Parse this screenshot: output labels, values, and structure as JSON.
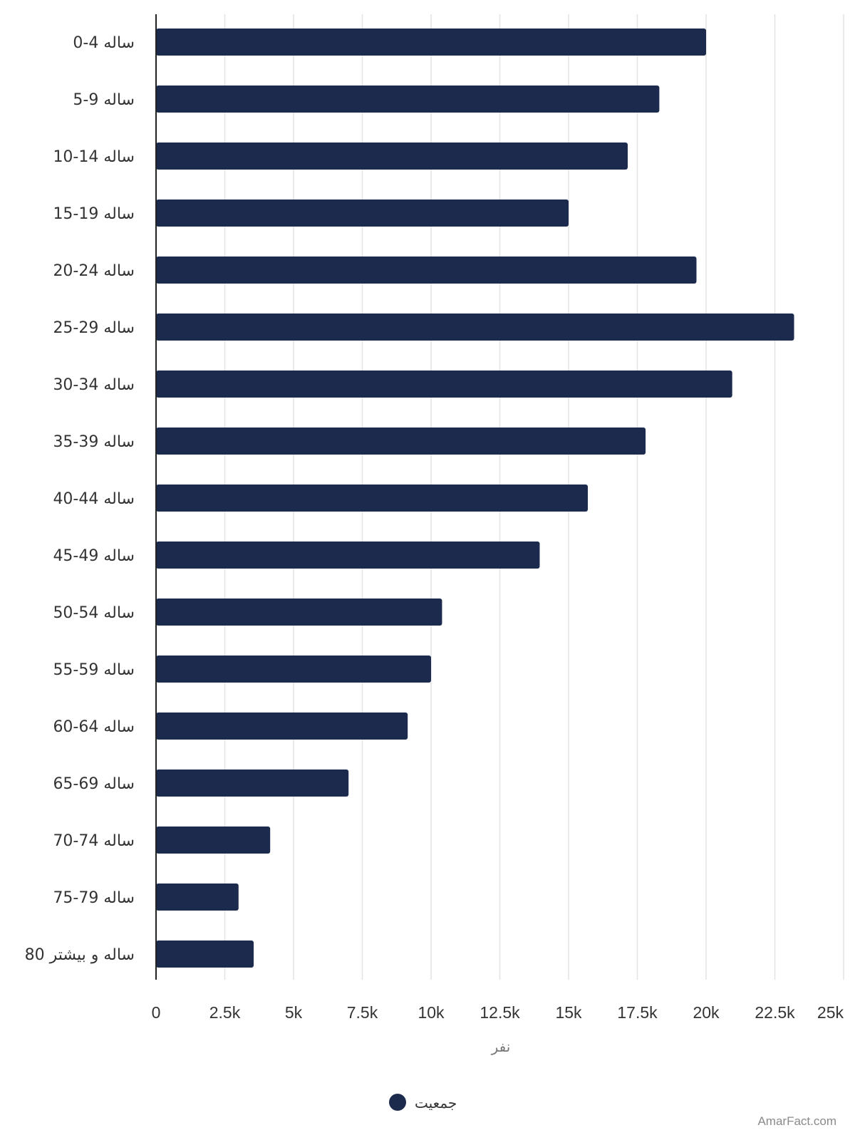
{
  "chart_data": {
    "type": "bar",
    "orientation": "horizontal",
    "categories": [
      "0-4 ساله",
      "5-9 ساله",
      "10-14 ساله",
      "15-19 ساله",
      "20-24 ساله",
      "25-29 ساله",
      "30-34 ساله",
      "35-39 ساله",
      "40-44 ساله",
      "45-49 ساله",
      "50-54 ساله",
      "55-59 ساله",
      "60-64 ساله",
      "65-69 ساله",
      "70-74 ساله",
      "75-79 ساله",
      "80 ساله و بیشتر"
    ],
    "series": [
      {
        "name": "جمعیت",
        "color": "#1c2a4d",
        "values": [
          20000,
          18300,
          17150,
          15000,
          19650,
          23200,
          20950,
          17800,
          15700,
          13950,
          10400,
          10000,
          9150,
          7000,
          4150,
          3000,
          3550
        ]
      }
    ],
    "xlabel": "نفر",
    "ylabel": "",
    "xlim": [
      0,
      25000
    ],
    "ticks": [
      "0",
      "2.5k",
      "5k",
      "7.5k",
      "10k",
      "12.5k",
      "15k",
      "17.5k",
      "20k",
      "22.5k",
      "25k"
    ],
    "tick_values": [
      0,
      2500,
      5000,
      7500,
      10000,
      12500,
      15000,
      17500,
      20000,
      22500,
      25000
    ],
    "grid": true,
    "legend_position": "bottom-center"
  },
  "watermark": "AmarFact.com"
}
